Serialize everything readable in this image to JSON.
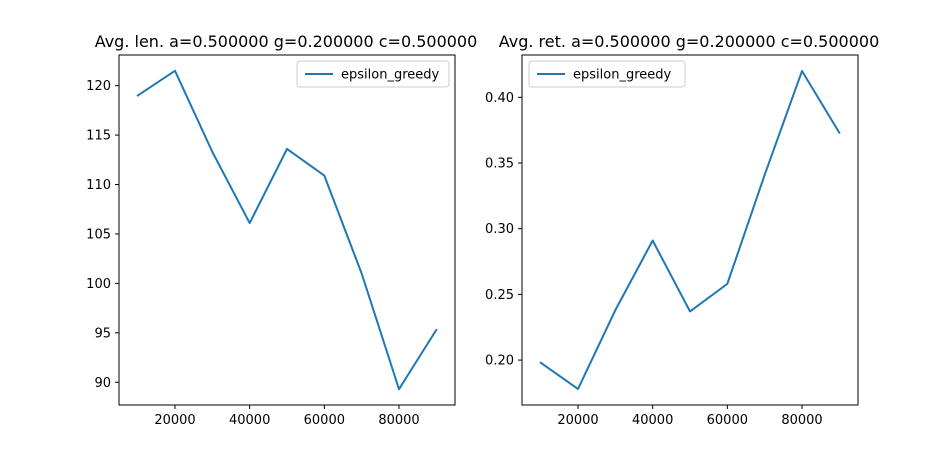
{
  "chart_data": [
    {
      "type": "line",
      "title": "Avg. len. a=0.500000 g=0.200000 c=0.500000",
      "xlabel": "",
      "ylabel": "",
      "x": [
        10000,
        20000,
        30000,
        40000,
        50000,
        60000,
        70000,
        80000,
        90000
      ],
      "series": [
        {
          "name": "epsilon_greedy",
          "color": "#1f77b4",
          "values": [
            119.0,
            121.5,
            113.3,
            106.1,
            113.6,
            110.9,
            101.0,
            89.3,
            95.3
          ]
        }
      ],
      "xlim": [
        5000,
        95000
      ],
      "ylim": [
        87.7,
        123.1
      ],
      "xticks": [
        20000,
        40000,
        60000,
        80000
      ],
      "xtick_labels": [
        "20000",
        "40000",
        "60000",
        "80000"
      ],
      "yticks": [
        90,
        95,
        100,
        105,
        110,
        115,
        120
      ],
      "ytick_labels": [
        "90",
        "95",
        "100",
        "105",
        "110",
        "115",
        "120"
      ],
      "legend": "top-right",
      "grid": false
    },
    {
      "type": "line",
      "title": "Avg. ret. a=0.500000 g=0.200000 c=0.500000",
      "xlabel": "",
      "ylabel": "",
      "x": [
        10000,
        20000,
        30000,
        40000,
        50000,
        60000,
        70000,
        80000,
        90000
      ],
      "series": [
        {
          "name": "epsilon_greedy",
          "color": "#1f77b4",
          "values": [
            0.198,
            0.178,
            0.238,
            0.291,
            0.237,
            0.258,
            0.341,
            0.42,
            0.373
          ]
        }
      ],
      "xlim": [
        5000,
        95000
      ],
      "ylim": [
        0.1658,
        0.4322
      ],
      "xticks": [
        20000,
        40000,
        60000,
        80000
      ],
      "xtick_labels": [
        "20000",
        "40000",
        "60000",
        "80000"
      ],
      "yticks": [
        0.2,
        0.25,
        0.3,
        0.35,
        0.4
      ],
      "ytick_labels": [
        "0.20",
        "0.25",
        "0.30",
        "0.35",
        "0.40"
      ],
      "legend": "top-left",
      "grid": false
    }
  ]
}
